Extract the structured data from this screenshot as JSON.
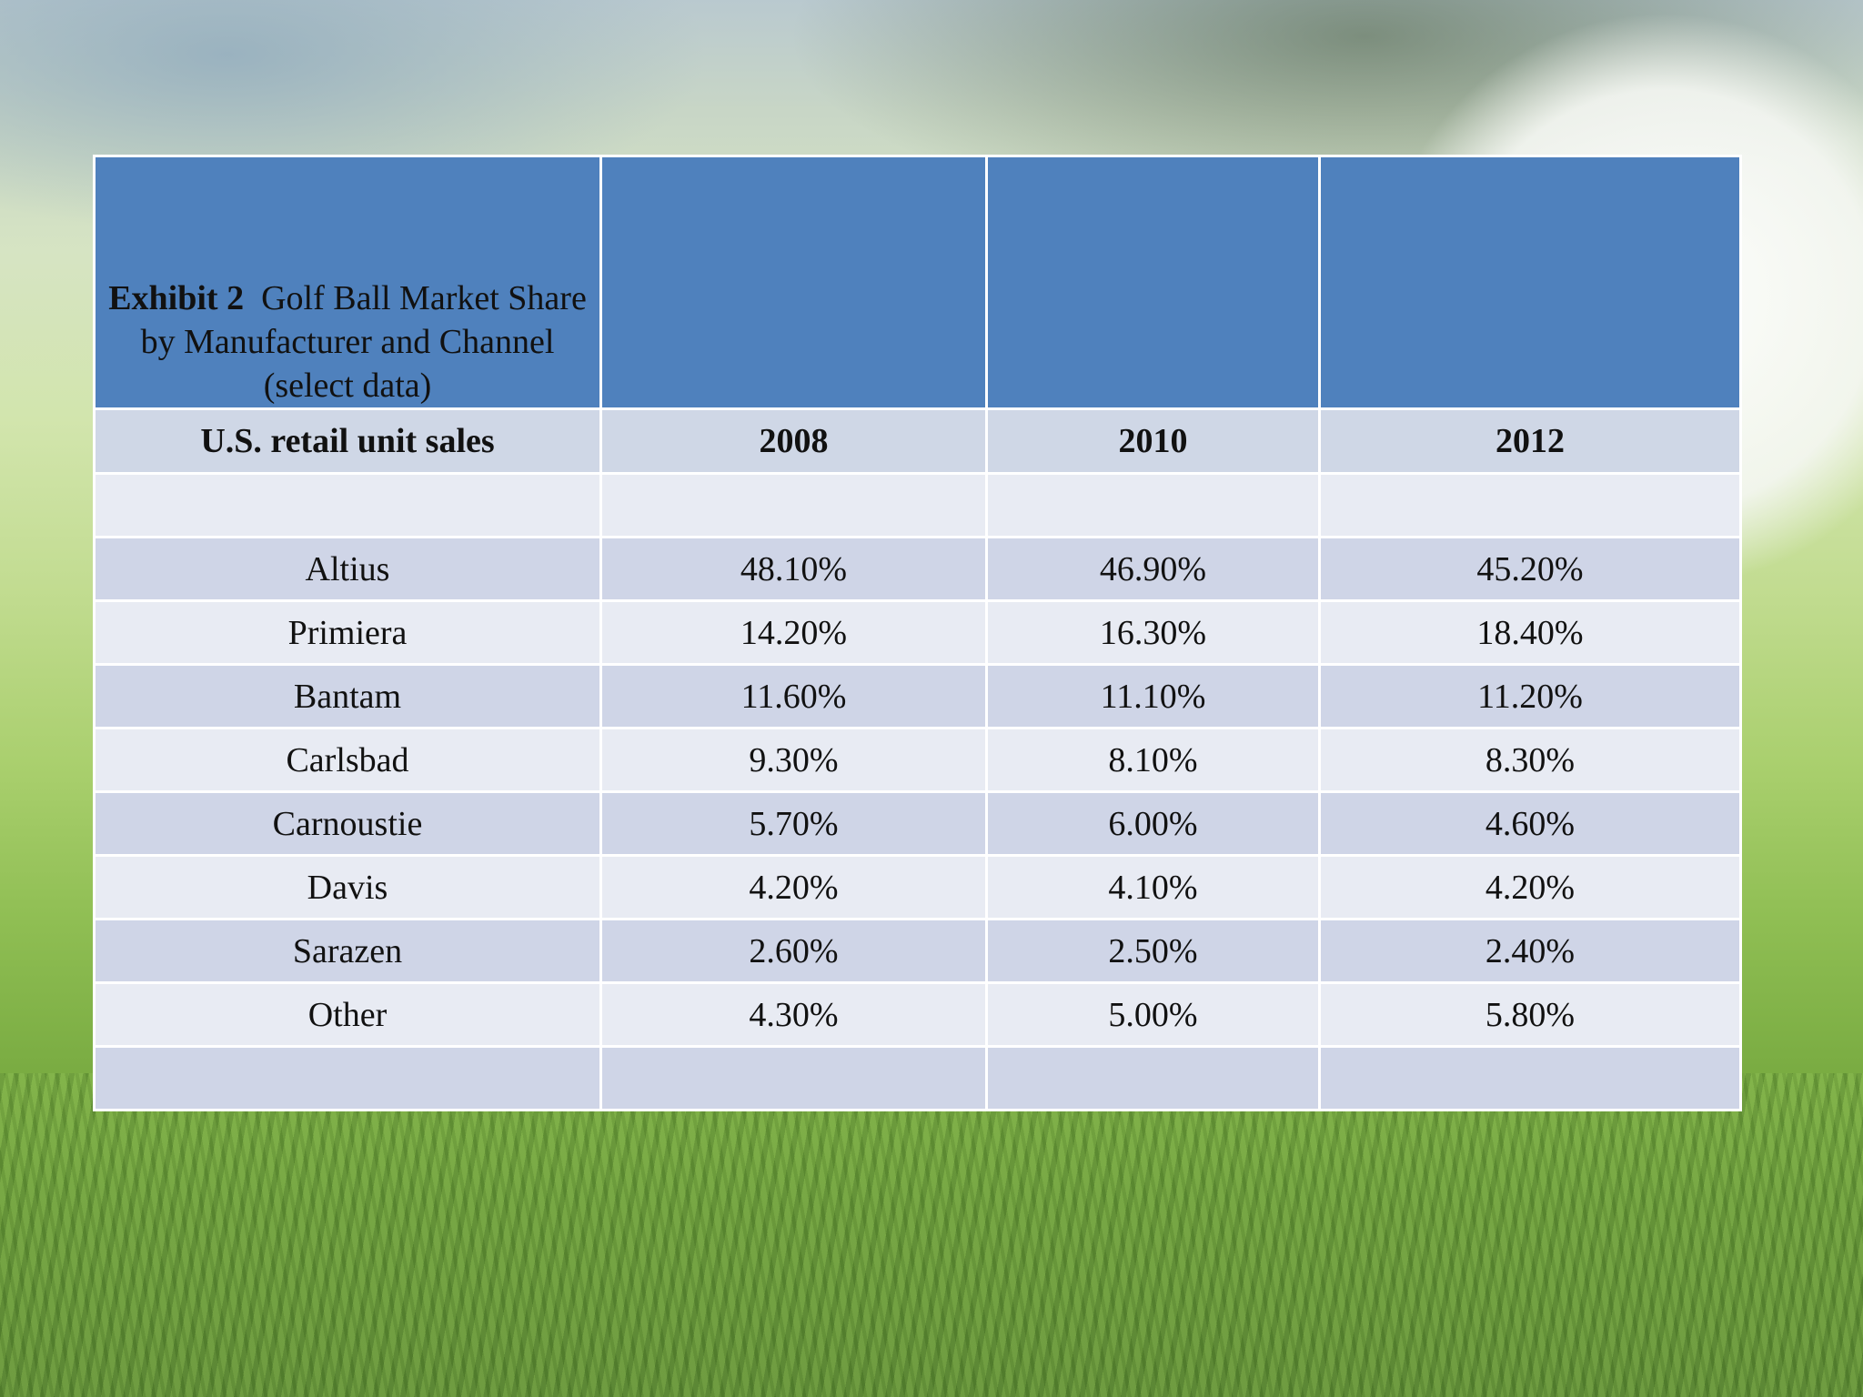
{
  "exhibit_label": "Exhibit 2",
  "title": "Golf Ball Market Share by Manufacturer and Channel (select data)",
  "header": {
    "label": "U.S. retail unit sales",
    "years": [
      "2008",
      "2010",
      "2012"
    ]
  },
  "rows": [
    {
      "name": "Altius",
      "values": [
        "48.10%",
        "46.90%",
        "45.20%"
      ]
    },
    {
      "name": "Primiera",
      "values": [
        "14.20%",
        "16.30%",
        "18.40%"
      ]
    },
    {
      "name": "Bantam",
      "values": [
        "11.60%",
        "11.10%",
        "11.20%"
      ]
    },
    {
      "name": "Carlsbad",
      "values": [
        "9.30%",
        "8.10%",
        "8.30%"
      ]
    },
    {
      "name": "Carnoustie",
      "values": [
        "5.70%",
        "6.00%",
        "4.60%"
      ]
    },
    {
      "name": "Davis",
      "values": [
        "4.20%",
        "4.10%",
        "4.20%"
      ]
    },
    {
      "name": "Sarazen",
      "values": [
        "2.60%",
        "2.50%",
        "2.40%"
      ]
    },
    {
      "name": "Other",
      "values": [
        "4.30%",
        "5.00%",
        "5.80%"
      ]
    }
  ],
  "colors": {
    "title_background": "#4f81bd",
    "header_background": "#cfd7e6",
    "row_light": "#e8ebf3",
    "row_dark": "#cfd5e7"
  }
}
